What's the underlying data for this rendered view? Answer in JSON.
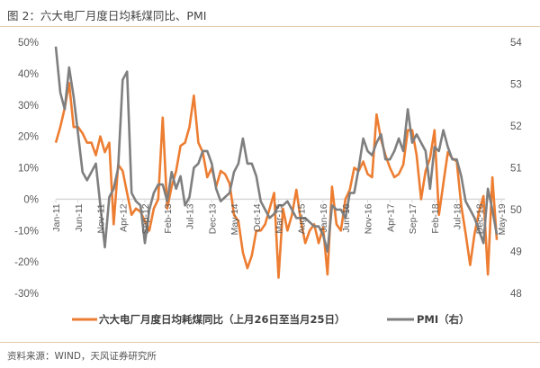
{
  "title": "图 2：六大电厂月度日均耗煤同比、PMI",
  "source": "资料来源：WIND，天风证券研究所",
  "colors": {
    "coal": "#ED7D31",
    "pmi": "#7F7F7F",
    "axis": "#D9D9D9"
  },
  "chart_data": {
    "type": "line",
    "title": "六大电厂月度日均耗煤同比、PMI",
    "x_tick_labels": [
      "Jan-11",
      "Jun-11",
      "Nov-11",
      "Apr-12",
      "Sep-12",
      "Feb-13",
      "Jul-13",
      "Dec-13",
      "May-14",
      "Oct-14",
      "Mar-15",
      "Aug-15",
      "Jan-16",
      "Jun-16",
      "Nov-16",
      "Apr-17",
      "Sep-17",
      "Feb-18",
      "Jul-18",
      "Dec-18",
      "May-19"
    ],
    "x_months_span": 100,
    "left_axis": {
      "ticks": [
        "50%",
        "40%",
        "30%",
        "20%",
        "10%",
        "0%",
        "-10%",
        "-20%",
        "-30%"
      ],
      "ylim": [
        -30,
        50
      ]
    },
    "right_axis": {
      "ticks": [
        "54",
        "53",
        "52",
        "51",
        "50",
        "49",
        "48"
      ],
      "ylim": [
        48,
        54
      ]
    },
    "legend_position": "bottom",
    "series": [
      {
        "name": "六大电厂月度日均耗煤同比（上月26日至当月25日）",
        "axis": "left",
        "unit": "%",
        "values": [
          18,
          23,
          29,
          37,
          23,
          23,
          21,
          18,
          18,
          14,
          20,
          15,
          18,
          -8,
          11,
          9,
          2,
          -5,
          -3,
          -4,
          -7,
          -10,
          -3,
          0,
          26,
          -3,
          4,
          9,
          17,
          18,
          23,
          33,
          18,
          15,
          7,
          10,
          4,
          9,
          8,
          5,
          -5,
          -7,
          -17,
          -22,
          -18,
          -10,
          -10,
          -8,
          -3,
          2,
          -25,
          -3,
          -10,
          -5,
          3,
          -7,
          -14,
          -10,
          -8,
          -14,
          -9,
          -24,
          4,
          -8,
          -10,
          0,
          3,
          10,
          9,
          12,
          8,
          7,
          27,
          19,
          14,
          10,
          7,
          8,
          11,
          22,
          22,
          14,
          0,
          9,
          13,
          22,
          -5,
          5,
          15,
          13,
          12,
          -2,
          -11,
          -21,
          -11,
          -4,
          1,
          -24,
          7,
          -13
        ]
      },
      {
        "name": "PMI（右）",
        "axis": "right",
        "values": [
          53.9,
          52.8,
          52.4,
          53.4,
          52.7,
          51.8,
          50.9,
          50.7,
          50.9,
          51.1,
          50.1,
          49.1,
          50.3,
          50.5,
          51.0,
          53.1,
          53.3,
          50.4,
          50.2,
          50.1,
          49.2,
          50.0,
          50.4,
          50.6,
          50.6,
          50.2,
          50.9,
          50.5,
          50.8,
          50.1,
          50.3,
          51.0,
          51.1,
          51.4,
          51.4,
          51.1,
          50.5,
          50.2,
          50.3,
          50.4,
          50.9,
          51.1,
          51.7,
          51.1,
          51.1,
          50.8,
          50.2,
          50.0,
          49.8,
          49.9,
          50.1,
          50.1,
          50.2,
          50.0,
          49.8,
          49.8,
          49.8,
          49.7,
          49.6,
          49.6,
          49.4,
          49.0,
          50.1,
          50.0,
          50.0,
          49.8,
          50.4,
          50.4,
          51.0,
          51.7,
          51.4,
          51.3,
          51.6,
          51.8,
          51.2,
          51.2,
          51.4,
          51.7,
          51.4,
          52.4,
          51.6,
          51.8,
          51.6,
          51.4,
          50.5,
          51.5,
          51.4,
          51.9,
          51.5,
          51.2,
          51.2,
          50.8,
          50.2,
          50.0,
          49.8,
          49.5,
          49.2,
          50.5,
          50.0,
          49.4
        ]
      }
    ]
  }
}
